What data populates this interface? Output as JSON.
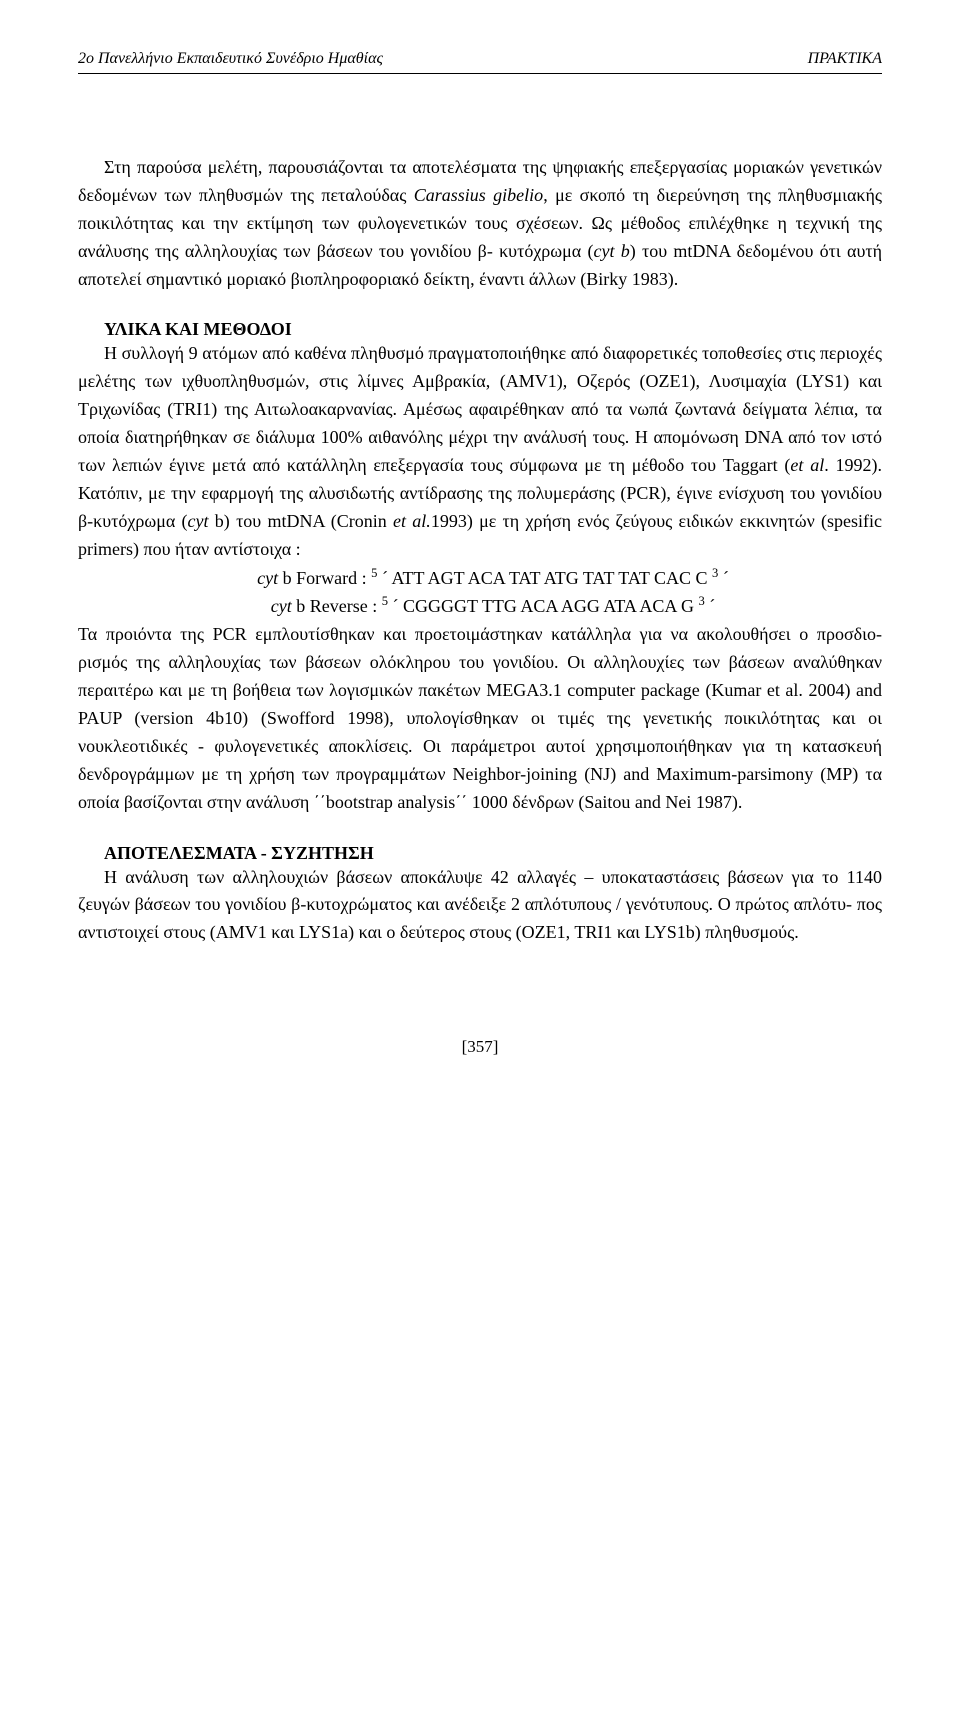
{
  "header": {
    "left": "2ο Πανελλήνιο Εκπαιδευτικό Συνέδριο Ημαθίας",
    "right": "ΠΡΑΚΤΙΚΑ"
  },
  "paragraphs": {
    "p1_part1": "Στη παρούσα μελέτη, παρουσιάζονται τα αποτελέσματα της ψηφιακής επεξεργασίας μοριακών  γενετικών δεδομένων των πληθυσμών της πεταλούδας ",
    "p1_italic": "Carassius gibelio",
    "p1_part2": ", με σκοπό τη διερεύνηση της πληθυσμιακής ποικιλότητας και την εκτίμηση των φυλογενετικών τους σχέσεων. Ως μέθοδος  επιλέχθηκε  η τεχνική της ανάλυσης της αλληλουχίας των βάσεων του γονιδίου β- κυτόχρωμα (",
    "p1_italic2": "cyt b",
    "p1_part3": ") του mtDNA δεδομένου ότι αυτή αποτελεί σημαντικό μοριακό βιοπληροφοριακό δείκτη, έναντι άλλων (Birky 1983)."
  },
  "section1": {
    "heading": "ΥΛΙΚΑ  ΚΑΙ  ΜΕΘΟΔΟΙ",
    "p1_part1": "Η συλλογή  9  ατόμων από καθένα πληθυσμό  πραγματοποιήθηκε από διαφορετικές τοποθεσίες στις περιοχές  μελέτης των  ιχθυοπληθυσμών,  στις λίμνες  Αμβρακία, (AMV1), Οζερός (OZE1),  Λυσιμαχία (LYS1) και  Τριχωνίδας (TRI1) της  Αιτωλοακαρνανίας. Αμέσως αφαιρέθηκαν από τα νωπά ζωντανά δείγματα  λέπια, τα οποία  διατηρήθηκαν  σε διάλυμα 100% αιθανόλης μέχρι την ανάλυσή τους. Η  απομόνωση DNA από  τον ιστό  των λεπιών έγινε  μετά από  κατάλληλη  επεξεργασία  τους σύμφωνα με τη μέθοδο του Taggart (",
    "p1_italic1": "et al",
    "p1_part2": ". 1992). Κατόπιν, με την εφαρμογή της αλυσιδωτής αντίδρασης της πολυμεράσης (PCR),  έγινε  ενίσχυση  του γονιδίου  β-κυτόχρωμα (",
    "p1_italic2": "cyt",
    "p1_part3": " b)  του mtDNA (Cronin  ",
    "p1_italic3": "et al.",
    "p1_part4": "1993) με τη  χρήση  ενός  ζεύγους  ειδικών  εκκινητών (spesific  primers)  που   ήταν  αντίστοιχα :",
    "primer_fwd_label": "cyt",
    "primer_fwd_text1": " b  Forward   :  ",
    "primer_fwd_sup1": "5",
    "primer_fwd_seq": " ´  ATT AGT ACA TAT ATG TAT TAT CAC C ",
    "primer_fwd_sup2": "3",
    "primer_fwd_end": " ´",
    "primer_rev_label": "cyt",
    "primer_rev_text1": " b  Reverse    :  ",
    "primer_rev_sup1": "5",
    "primer_rev_seq": " ´  CGGGGT TTG ACA AGG ATA ACA G ",
    "primer_rev_sup2": "3",
    "primer_rev_end": " ´",
    "p2_text": "Τα προιόντα της PCR  εμπλουτίσθηκαν και προετοιμάστηκαν κατάλληλα για να ακολουθήσει ο προσδιο- ρισμός  της αλληλουχίας των βάσεων ολόκληρου του γονιδίου. Οι αλληλουχίες των βάσεων  αναλύθηκαν  περαιτέρω  και  με  τη  βοήθεια  των  λογισμικών  πακέτων  MEGA3.1 computer package (Kumar et al. 2004) and PAUP (version 4b10) (Swofford 1998), υπολογίσθηκαν οι τιμές της γενετικής  ποικιλότητας  και  οι νουκλεοτιδικές - φυλογενετικές  αποκλίσεις. Οι παράμετροι αυτοί χρησιμοποιήθηκαν για τη κατασκευή δενδρογράμμων με τη χρήση των προγραμμάτων Neighbor-joining (NJ) and Maximum-parsimony (MP) τα οποία βασίζονται στην ανάλυση ΄΄bootstrap analysis΄΄ 1000 δένδρων (Saitou  and  Nei 1987)."
  },
  "section2": {
    "heading": "ΑΠΟΤΕΛΕΣΜΑΤΑ - ΣΥΖΗΤΗΣΗ",
    "p1_text": "Η ανάλυση των αλληλουχιών βάσεων αποκάλυψε 42 αλλαγές – υποκαταστάσεις  βάσεων  για το  1140  ζευγών  βάσεων του γονιδίου  β-κυτοχρώματος  και ανέδειξε  2  απλότυπους / γενότυπους. Ο πρώτος      απλότυ- πος αντιστοιχεί στους (AMV1 και LYS1a)  και ο δεύτερος στους (OZE1, TRI1 και LYS1b)  πληθυσμούς."
  },
  "footer": {
    "page_number": "[357]"
  }
}
